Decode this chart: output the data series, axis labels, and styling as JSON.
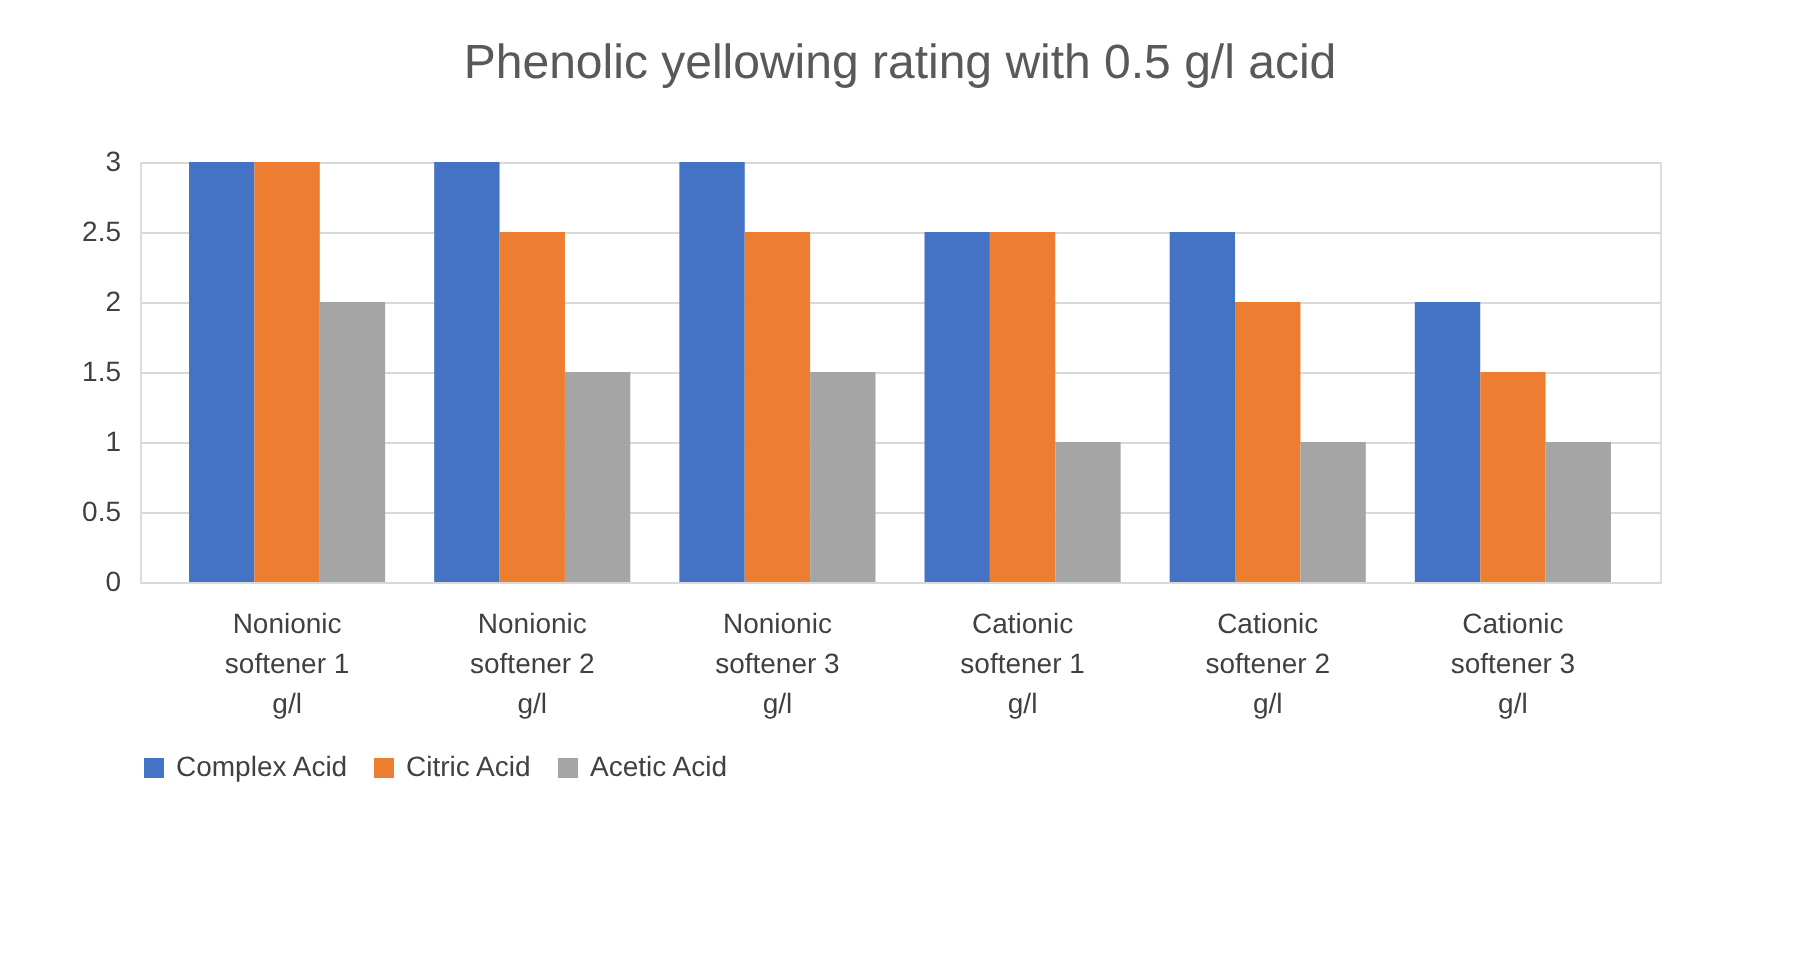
{
  "chart_data": {
    "type": "bar",
    "title": "Phenolic yellowing rating with 0.5 g/l acid",
    "categories": [
      "Nonionic softener 1 g/l",
      "Nonionic softener 2 g/l",
      "Nonionic softener 3 g/l",
      "Cationic softener 1 g/l",
      "Cationic softener 2 g/l",
      "Cationic softener 3 g/l"
    ],
    "series": [
      {
        "name": "Complex Acid",
        "color": "#4472c4",
        "values": [
          3,
          3,
          3,
          2.5,
          2.5,
          2
        ]
      },
      {
        "name": "Citric Acid",
        "color": "#ed7d31",
        "values": [
          3,
          2.5,
          2.5,
          2.5,
          2,
          1.5
        ]
      },
      {
        "name": "Acetic Acid",
        "color": "#a5a5a5",
        "values": [
          2,
          1.5,
          1.5,
          1,
          1,
          1
        ]
      }
    ],
    "ylim": [
      0,
      3
    ],
    "yticks": [
      0,
      0.5,
      1,
      1.5,
      2,
      2.5,
      3
    ],
    "grid": "y",
    "legend": "bottom"
  }
}
